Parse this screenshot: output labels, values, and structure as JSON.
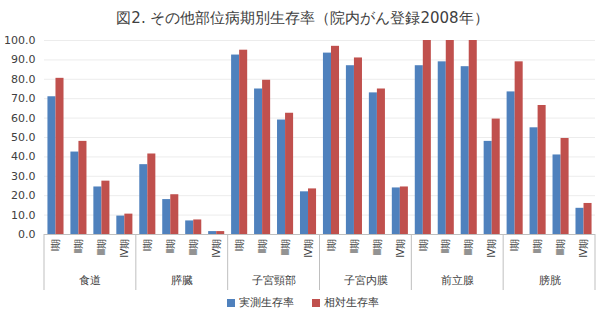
{
  "chart_data": {
    "type": "bar",
    "title": "図2.  その他部位病期別生存率（院内がん登録2008年）",
    "categories": [
      "Ⅰ期",
      "Ⅱ期",
      "Ⅲ期",
      "Ⅳ期",
      "Ⅰ期",
      "Ⅱ期",
      "Ⅲ期",
      "Ⅳ期",
      "Ⅰ期",
      "Ⅱ期",
      "Ⅲ期",
      "Ⅳ期",
      "Ⅰ期",
      "Ⅱ期",
      "Ⅲ期",
      "Ⅳ期",
      "Ⅰ期",
      "Ⅱ期",
      "Ⅲ期",
      "Ⅳ期",
      "Ⅰ期",
      "Ⅱ期",
      "Ⅲ期",
      "Ⅳ期"
    ],
    "groups": [
      "食道",
      "膵臓",
      "子宮頸部",
      "子宮内膜",
      "前立腺",
      "膀胱"
    ],
    "series": [
      {
        "name": "実測生存率",
        "color": "#4f81bd",
        "values": [
          71.0,
          42.5,
          24.5,
          9.5,
          36.0,
          18.0,
          7.0,
          1.5,
          92.5,
          75.0,
          59.0,
          22.0,
          93.5,
          87.0,
          73.0,
          24.0,
          87.0,
          89.0,
          86.5,
          48.0,
          73.5,
          55.0,
          41.0,
          13.5
        ]
      },
      {
        "name": "相対生存率",
        "color": "#c0504d",
        "values": [
          80.5,
          48.0,
          27.5,
          10.5,
          41.5,
          20.5,
          7.5,
          1.5,
          95.0,
          79.5,
          62.5,
          23.5,
          97.0,
          91.0,
          75.0,
          24.5,
          100.0,
          100.0,
          100.0,
          59.5,
          89.0,
          66.5,
          49.5,
          16.0
        ]
      }
    ],
    "ylim": [
      0,
      100
    ],
    "yticks": [
      {
        "value": 0,
        "label": "0.0"
      },
      {
        "value": 10,
        "label": "10.0"
      },
      {
        "value": 20,
        "label": "20.0"
      },
      {
        "value": 30,
        "label": "30.0"
      },
      {
        "value": 40,
        "label": "40.0"
      },
      {
        "value": 50,
        "label": "50.0"
      },
      {
        "value": 60,
        "label": "60.0"
      },
      {
        "value": 70,
        "label": "70.0"
      },
      {
        "value": 80,
        "label": "80.0"
      },
      {
        "value": 90,
        "label": "90.0"
      },
      {
        "value": 100,
        "label": "100.0"
      }
    ],
    "grid": true,
    "legend": "bottom"
  }
}
